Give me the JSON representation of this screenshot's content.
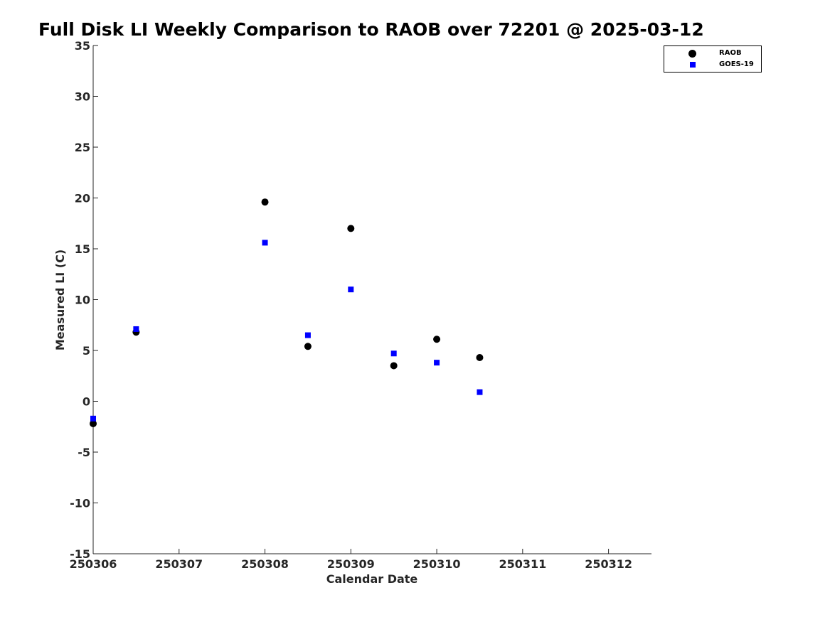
{
  "chart_data": {
    "type": "scatter",
    "title": "Full Disk LI Weekly Comparison to RAOB over 72201 @ 2025-03-12",
    "xlabel": "Calendar Date",
    "ylabel": "Measured LI (C)",
    "xlim": [
      0,
      6.5
    ],
    "ylim": [
      -15,
      35
    ],
    "x_tick_values": [
      0,
      1,
      2,
      3,
      4,
      5,
      6
    ],
    "x_tick_labels": [
      "250306",
      "250307",
      "250308",
      "250309",
      "250310",
      "250311",
      "250312"
    ],
    "y_ticks": [
      -15,
      -10,
      -5,
      0,
      5,
      10,
      15,
      20,
      25,
      30,
      35
    ],
    "grid": false,
    "legend_position": "top-right",
    "series": [
      {
        "name": "RAOB",
        "marker": "circle",
        "color": "#000000",
        "x": [
          0,
          0.5,
          2,
          2.5,
          3,
          3.5,
          4,
          4.5
        ],
        "y": [
          -2.2,
          6.8,
          19.6,
          5.4,
          17.0,
          3.5,
          6.1,
          4.3
        ]
      },
      {
        "name": "GOES-19",
        "marker": "square",
        "color": "#0000ff",
        "x": [
          0,
          0.5,
          2,
          2.5,
          3,
          3.5,
          4,
          4.5
        ],
        "y": [
          -1.7,
          7.1,
          15.6,
          6.5,
          11.0,
          4.7,
          3.8,
          0.9
        ]
      }
    ]
  }
}
